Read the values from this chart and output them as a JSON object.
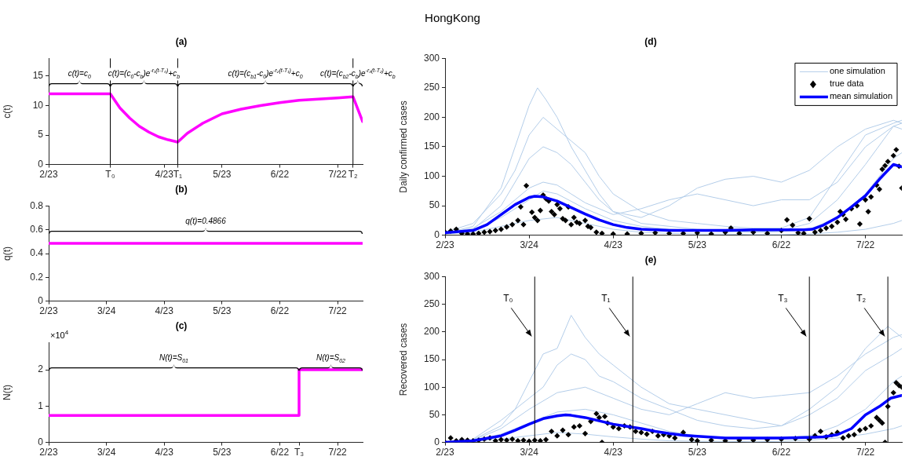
{
  "chart_data": [
    {
      "type": "other",
      "title": "HongKong"
    },
    {
      "type": "line",
      "title": "(a)",
      "ylabel": "c(t)",
      "xlim": [
        "--02-23",
        "--08-04"
      ],
      "ylim": [
        0,
        18
      ],
      "yticks": [
        0,
        5,
        10,
        15
      ],
      "xticks": [
        {
          "value": "--02-23",
          "label": "2/23"
        },
        {
          "value": "--03-26",
          "label": "T₀"
        },
        {
          "value": "--04-23",
          "label": "4/23"
        },
        {
          "value": "--04-30",
          "label": "T₁"
        },
        {
          "value": "--05-23",
          "label": "5/23"
        },
        {
          "value": "--06-22",
          "label": "6/22"
        },
        {
          "value": "--07-22",
          "label": "7/22"
        },
        {
          "value": "--07-30",
          "label": "T₂"
        }
      ],
      "series": [
        {
          "color": "#ff00ff",
          "x": [
            "--02-23",
            "--03-26",
            "--03-31",
            "--04-05",
            "--04-10",
            "--04-15",
            "--04-20",
            "--04-25",
            "--04-30",
            "--05-05",
            "--05-13",
            "--05-23",
            "--06-02",
            "--06-12",
            "--06-22",
            "--07-02",
            "--07-12",
            "--07-22",
            "--07-30",
            "--08-04"
          ],
          "values": [
            12,
            12,
            9.6,
            7.9,
            6.5,
            5.5,
            4.7,
            4.2,
            3.8,
            5.3,
            7.0,
            8.6,
            9.4,
            10.0,
            10.5,
            10.9,
            11.1,
            11.3,
            11.5,
            7.3
          ]
        }
      ],
      "ref_lines": [
        {
          "axis": "x",
          "value": "--03-26",
          "color": "#000000"
        },
        {
          "axis": "x",
          "value": "--04-30",
          "color": "#000000"
        },
        {
          "axis": "x",
          "value": "--07-30",
          "color": "#000000"
        }
      ],
      "annotations": [
        "c(t)=c$_{0}$",
        "c(t)=(c$_{0}$-c$_{b}$)e$^{-r₁(t-T₀)}$+c$_{b}$",
        "c(t)=(c$_{b1}$-c$_{0}$)e$^{-r₂(t-T₁)}$+c$_{0}$",
        "c(t)=(c$_{b2}$-c$_{b}$)e$^{-r₃(t-T₂)}$+c$_{b}$"
      ]
    },
    {
      "type": "line",
      "title": "(b)",
      "ylabel": "q(t)",
      "xlim": [
        "--02-23",
        "--08-04"
      ],
      "ylim": [
        0,
        0.8
      ],
      "yticks": [
        0,
        0.2,
        0.4,
        0.6,
        0.8
      ],
      "xticks": [
        {
          "value": "--02-23",
          "label": "2/23"
        },
        {
          "value": "--03-24",
          "label": "3/24"
        },
        {
          "value": "--04-23",
          "label": "4/23"
        },
        {
          "value": "--05-23",
          "label": "5/23"
        },
        {
          "value": "--06-22",
          "label": "6/22"
        },
        {
          "value": "--07-22",
          "label": "7/22"
        }
      ],
      "series": [
        {
          "color": "#ff00ff",
          "x": [
            "--02-23",
            "--08-04"
          ],
          "values": [
            0.4866,
            0.4866
          ]
        }
      ],
      "annotations": [
        "q(t)=0.4866"
      ]
    },
    {
      "type": "line",
      "title": "(c)",
      "ylabel": "N(t)",
      "xlim": [
        "--02-23",
        "--08-04"
      ],
      "ylim": [
        0,
        2.75
      ],
      "yticks": [
        0,
        1,
        2
      ],
      "xticks": [
        {
          "value": "--02-23",
          "label": "2/23"
        },
        {
          "value": "--03-24",
          "label": "3/24"
        },
        {
          "value": "--04-23",
          "label": "4/23"
        },
        {
          "value": "--05-23",
          "label": "5/23"
        },
        {
          "value": "--06-22",
          "label": "6/22"
        },
        {
          "value": "--07-02",
          "label": "T₃"
        },
        {
          "value": "--07-22",
          "label": "7/22"
        }
      ],
      "series": [
        {
          "color": "#ff00ff",
          "x": [
            "--02-23",
            "--07-02",
            "--07-02",
            "--08-04"
          ],
          "values": [
            0.74,
            0.74,
            2,
            2
          ]
        }
      ],
      "annotations": [
        "N(t)=S$_{01}$",
        "N(t)=S$_{02}$",
        "×10$^{4}$"
      ]
    },
    {
      "type": "line",
      "title": "(d)",
      "ylabel": "Daily confirmed cases",
      "xlim": [
        "--02-23",
        "--08-04"
      ],
      "ylim": [
        0,
        300
      ],
      "yticks": [
        0,
        50,
        100,
        150,
        200,
        250,
        300
      ],
      "legend": "top right",
      "xticks": [
        {
          "value": "--02-23",
          "label": "2/23"
        },
        {
          "value": "--03-24",
          "label": "3/24"
        },
        {
          "value": "--04-23",
          "label": "4/23"
        },
        {
          "value": "--05-23",
          "label": "5/23"
        },
        {
          "value": "--06-22",
          "label": "6/22"
        },
        {
          "value": "--07-22",
          "label": "7/22"
        }
      ],
      "series": [
        {
          "name": "one simulation",
          "color": "#b3cde9",
          "x": [
            "--02-23",
            "--03-04",
            "--03-14",
            "--03-19",
            "--03-24",
            "--03-27",
            "--03-30",
            "--04-03",
            "--04-08",
            "--04-13",
            "--04-18",
            "--04-23",
            "--05-03",
            "--05-13",
            "--05-23",
            "--06-02",
            "--06-12",
            "--06-22",
            "--07-02",
            "--07-12",
            "--07-22",
            "--08-01",
            "--08-04"
          ],
          "values": [
            3,
            15,
            80,
            150,
            220,
            250,
            230,
            200,
            150,
            110,
            70,
            40,
            20,
            15,
            10,
            8,
            6,
            8,
            20,
            60,
            120,
            185,
            190
          ]
        },
        {
          "color": "#b3cde9",
          "x": [
            "--02-23",
            "--03-04",
            "--03-14",
            "--03-19",
            "--03-24",
            "--03-29",
            "--04-03",
            "--04-08",
            "--04-13",
            "--04-18",
            "--04-23",
            "--05-03",
            "--05-13",
            "--05-23",
            "--06-02",
            "--06-12",
            "--06-22",
            "--07-02",
            "--07-12",
            "--07-22",
            "--08-01",
            "--08-04"
          ],
          "values": [
            2,
            10,
            50,
            90,
            130,
            150,
            140,
            120,
            90,
            60,
            40,
            30,
            50,
            80,
            95,
            100,
            90,
            110,
            150,
            180,
            195,
            190
          ]
        },
        {
          "color": "#b3cde9",
          "x": [
            "--02-23",
            "--03-04",
            "--03-14",
            "--03-24",
            "--03-29",
            "--04-03",
            "--04-13",
            "--04-23",
            "--05-03",
            "--05-13",
            "--05-23",
            "--06-02",
            "--06-12",
            "--06-22",
            "--07-02",
            "--07-12",
            "--07-22",
            "--08-01",
            "--08-04"
          ],
          "values": [
            4,
            8,
            30,
            60,
            75,
            70,
            45,
            25,
            15,
            10,
            8,
            6,
            5,
            6,
            10,
            30,
            70,
            130,
            140
          ]
        },
        {
          "color": "#b3cde9",
          "x": [
            "--02-23",
            "--03-04",
            "--03-14",
            "--03-19",
            "--03-24",
            "--03-29",
            "--04-03",
            "--04-08",
            "--04-13",
            "--04-23",
            "--05-03",
            "--05-13",
            "--05-23",
            "--06-02",
            "--06-12",
            "--06-22",
            "--07-02",
            "--07-12",
            "--07-22",
            "--08-01",
            "--08-04"
          ],
          "values": [
            3,
            12,
            40,
            60,
            80,
            90,
            85,
            70,
            55,
            35,
            45,
            60,
            70,
            60,
            50,
            60,
            60,
            90,
            150,
            185,
            180
          ]
        },
        {
          "color": "#b3cde9",
          "x": [
            "--02-23",
            "--03-04",
            "--03-14",
            "--03-24",
            "--04-03",
            "--04-13",
            "--04-23",
            "--05-03",
            "--05-13",
            "--05-23",
            "--06-02",
            "--06-12",
            "--06-22",
            "--07-02",
            "--07-12",
            "--07-22",
            "--08-01",
            "--08-04"
          ],
          "values": [
            2,
            5,
            15,
            25,
            30,
            20,
            10,
            5,
            3,
            2,
            2,
            1,
            1,
            2,
            5,
            10,
            20,
            25
          ]
        },
        {
          "color": "#b3cde9",
          "x": [
            "--02-23",
            "--03-04",
            "--03-14",
            "--03-19",
            "--03-24",
            "--03-29",
            "--04-03",
            "--04-08",
            "--04-13",
            "--04-18",
            "--04-23",
            "--05-03",
            "--05-13",
            "--05-23",
            "--06-02",
            "--06-12",
            "--06-22",
            "--07-02",
            "--07-12",
            "--07-22",
            "--08-01",
            "--08-04"
          ],
          "values": [
            5,
            20,
            70,
            110,
            170,
            200,
            180,
            160,
            140,
            100,
            70,
            40,
            25,
            20,
            15,
            12,
            12,
            30,
            100,
            170,
            190,
            195
          ]
        },
        {
          "name": "true data",
          "type": "scatter",
          "marker": "diamond",
          "color": "#000000",
          "x": [
            "--02-23",
            "--02-25",
            "--02-27",
            "--02-29",
            "--03-02",
            "--03-04",
            "--03-06",
            "--03-08",
            "--03-10",
            "--03-12",
            "--03-14",
            "--03-16",
            "--03-18",
            "--03-20",
            "--03-21",
            "--03-22",
            "--03-23",
            "--03-25",
            "--03-26",
            "--03-27",
            "--03-28",
            "--03-29",
            "--03-30",
            "--03-31",
            "--04-01",
            "--04-02",
            "--04-03",
            "--04-04",
            "--04-05",
            "--04-06",
            "--04-07",
            "--04-08",
            "--04-09",
            "--04-10",
            "--04-11",
            "--04-13",
            "--04-14",
            "--04-15",
            "--04-17",
            "--04-19",
            "--04-23",
            "--04-28",
            "--05-03",
            "--05-08",
            "--05-13",
            "--05-18",
            "--05-23",
            "--05-28",
            "--06-02",
            "--06-04",
            "--06-07",
            "--06-12",
            "--06-17",
            "--06-22",
            "--06-24",
            "--06-26",
            "--06-28",
            "--06-30",
            "--07-02",
            "--07-04",
            "--07-06",
            "--07-08",
            "--07-10",
            "--07-12",
            "--07-13",
            "--07-14",
            "--07-15",
            "--07-17",
            "--07-19",
            "--07-20",
            "--07-22",
            "--07-23",
            "--07-24",
            "--07-26",
            "--07-27",
            "--07-28",
            "--07-29",
            "--07-30",
            "--08-01",
            "--08-02",
            "--08-03",
            "--08-04"
          ],
          "values": [
            5,
            7,
            10,
            3,
            2,
            2,
            3,
            5,
            6,
            8,
            10,
            14,
            18,
            25,
            48,
            18,
            84,
            39,
            30,
            25,
            42,
            68,
            62,
            58,
            40,
            35,
            52,
            45,
            28,
            25,
            48,
            18,
            30,
            22,
            20,
            25,
            15,
            13,
            5,
            3,
            2,
            2,
            3,
            4,
            3,
            3,
            4,
            2,
            5,
            12,
            3,
            5,
            3,
            8,
            26,
            17,
            4,
            3,
            28,
            5,
            8,
            12,
            15,
            22,
            40,
            35,
            27,
            45,
            50,
            19,
            60,
            40,
            65,
            85,
            78,
            112,
            118,
            125,
            135,
            145,
            117,
            80
          ]
        },
        {
          "name": "mean simulation",
          "color": "#0000ff",
          "x": [
            "--02-23",
            "--03-04",
            "--03-09",
            "--03-14",
            "--03-19",
            "--03-24",
            "--03-26",
            "--03-29",
            "--04-03",
            "--04-08",
            "--04-13",
            "--04-18",
            "--04-23",
            "--04-28",
            "--05-03",
            "--05-13",
            "--05-23",
            "--06-02",
            "--06-12",
            "--06-22",
            "--06-30",
            "--07-03",
            "--07-07",
            "--07-12",
            "--07-17",
            "--07-22",
            "--07-27",
            "--08-01",
            "--08-04"
          ],
          "values": [
            4,
            8,
            18,
            35,
            52,
            64,
            66,
            65,
            58,
            47,
            36,
            26,
            18,
            13,
            10,
            8,
            8,
            8,
            9,
            9,
            9,
            10,
            17,
            30,
            48,
            67,
            95,
            120,
            116
          ]
        }
      ]
    },
    {
      "type": "line",
      "title": "(e)",
      "ylabel": "Recovered cases",
      "xlim": [
        "--02-23",
        "--08-04"
      ],
      "ylim": [
        0,
        300
      ],
      "yticks": [
        0,
        50,
        100,
        150,
        200,
        250,
        300
      ],
      "xticks": [
        {
          "value": "--02-23",
          "label": "2/23"
        },
        {
          "value": "--03-24",
          "label": "3/24"
        },
        {
          "value": "--04-23",
          "label": "4/23"
        },
        {
          "value": "--05-23",
          "label": "5/23"
        },
        {
          "value": "--06-22",
          "label": "6/22"
        },
        {
          "value": "--07-22",
          "label": "7/22"
        }
      ],
      "series": [
        {
          "color": "#b3cde9",
          "x": [
            "--03-04",
            "--03-14",
            "--03-19",
            "--03-24",
            "--03-29",
            "--04-03",
            "--04-08",
            "--04-13",
            "--04-18",
            "--04-23",
            "--04-28",
            "--05-03",
            "--05-13",
            "--05-23",
            "--06-02",
            "--06-12",
            "--06-22",
            "--07-02",
            "--07-12",
            "--07-22",
            "--07-30",
            "--08-04"
          ],
          "values": [
            5,
            30,
            60,
            110,
            160,
            170,
            230,
            190,
            160,
            140,
            120,
            100,
            70,
            60,
            50,
            40,
            30,
            60,
            100,
            170,
            210,
            190
          ]
        },
        {
          "color": "#b3cde9",
          "x": [
            "--03-04",
            "--03-14",
            "--03-24",
            "--04-03",
            "--04-13",
            "--04-23",
            "--05-03",
            "--05-13",
            "--05-23",
            "--06-02",
            "--06-12",
            "--06-22",
            "--07-02",
            "--07-12",
            "--07-22",
            "--08-01",
            "--08-04"
          ],
          "values": [
            4,
            25,
            60,
            90,
            100,
            80,
            60,
            50,
            70,
            90,
            80,
            85,
            90,
            120,
            160,
            190,
            195
          ]
        },
        {
          "color": "#b3cde9",
          "x": [
            "--03-04",
            "--03-14",
            "--03-24",
            "--04-03",
            "--04-13",
            "--04-23",
            "--05-03",
            "--05-13",
            "--05-23",
            "--06-02",
            "--06-12",
            "--06-22",
            "--07-02",
            "--07-12",
            "--07-22",
            "--08-01",
            "--08-04"
          ],
          "values": [
            3,
            15,
            35,
            55,
            60,
            50,
            35,
            20,
            12,
            null,
            8,
            8,
            12,
            30,
            60,
            110,
            120
          ]
        },
        {
          "color": "#b3cde9",
          "x": [
            "--03-04",
            "--03-14",
            "--03-24",
            "--04-03",
            "--04-13",
            "--04-23",
            "--05-03",
            "--05-13",
            "--05-23",
            "--06-02",
            "--06-12",
            "--06-22",
            "--07-02",
            "--07-12",
            "--07-22",
            "--08-01",
            "--08-04"
          ],
          "values": [
            2,
            6,
            12,
            18,
            15,
            10,
            6,
            3,
            2,
            2,
            1,
            2,
            4,
            8,
            15,
            25,
            30
          ]
        },
        {
          "color": "#b3cde9",
          "x": [
            "--03-04",
            "--03-14",
            "--03-24",
            "--03-29",
            "--04-03",
            "--04-08",
            "--04-13",
            "--04-18",
            "--04-23",
            "--05-03",
            "--05-13",
            "--05-23",
            "--06-02",
            "--06-12",
            "--06-22",
            "--07-02",
            "--07-12",
            "--07-22",
            "--08-01",
            "--08-04"
          ],
          "values": [
            6,
            40,
            80,
            100,
            140,
            160,
            150,
            120,
            110,
            80,
            60,
            40,
            30,
            25,
            30,
            50,
            80,
            130,
            160,
            170
          ]
        },
        {
          "type": "scatter",
          "marker": "diamond",
          "color": "#000000",
          "x": [
            "--02-23",
            "--02-25",
            "--02-27",
            "--02-29",
            "--03-02",
            "--03-04",
            "--03-06",
            "--03-08",
            "--03-10",
            "--03-12",
            "--03-14",
            "--03-16",
            "--03-18",
            "--03-20",
            "--03-22",
            "--03-24",
            "--03-26",
            "--03-28",
            "--03-30",
            "--04-01",
            "--04-03",
            "--04-05",
            "--04-07",
            "--04-09",
            "--04-11",
            "--04-13",
            "--04-15",
            "--04-17",
            "--04-18",
            "--04-19",
            "--04-20",
            "--04-21",
            "--04-23",
            "--04-25",
            "--04-27",
            "--04-29",
            "--05-01",
            "--05-03",
            "--05-05",
            "--05-07",
            "--05-09",
            "--05-11",
            "--05-13",
            "--05-15",
            "--05-18",
            "--05-21",
            "--05-23",
            "--05-28",
            "--06-02",
            "--06-07",
            "--06-12",
            "--06-17",
            "--06-22",
            "--06-27",
            "--07-02",
            "--07-04",
            "--07-06",
            "--07-08",
            "--07-10",
            "--07-12",
            "--07-14",
            "--07-16",
            "--07-18",
            "--07-20",
            "--07-22",
            "--07-24",
            "--07-26",
            "--07-27",
            "--07-28",
            "--07-29",
            "--07-30",
            "--08-01",
            "--08-02",
            "--08-03",
            "--08-04"
          ],
          "values": [
            0,
            8,
            3,
            5,
            4,
            3,
            4,
            6,
            8,
            3,
            5,
            4,
            6,
            3,
            4,
            2,
            4,
            3,
            5,
            20,
            12,
            22,
            14,
            28,
            30,
            16,
            38,
            52,
            45,
            0,
            47,
            35,
            28,
            25,
            30,
            28,
            20,
            18,
            15,
            20,
            12,
            14,
            12,
            8,
            18,
            5,
            3,
            4,
            3,
            4,
            4,
            5,
            6,
            7,
            6,
            12,
            20,
            10,
            14,
            18,
            8,
            12,
            14,
            22,
            25,
            30,
            45,
            40,
            35,
            0,
            65,
            90,
            108,
            103,
            100
          ]
        },
        {
          "color": "#0000ff",
          "x": [
            "--02-23",
            "--03-04",
            "--03-14",
            "--03-19",
            "--03-24",
            "--03-29",
            "--04-03",
            "--04-06",
            "--04-08",
            "--04-13",
            "--04-18",
            "--04-23",
            "--04-28",
            "--05-03",
            "--05-08",
            "--05-13",
            "--05-18",
            "--05-23",
            "--06-02",
            "--06-12",
            "--06-22",
            "--07-02",
            "--07-07",
            "--07-12",
            "--07-17",
            "--07-22",
            "--07-27",
            "--07-31",
            "--08-04"
          ],
          "values": [
            0,
            3,
            12,
            22,
            33,
            43,
            48,
            50,
            49,
            45,
            39,
            33,
            29,
            25,
            20,
            16,
            13,
            11,
            8,
            8,
            8,
            9,
            10,
            14,
            25,
            50,
            65,
            80,
            85
          ]
        }
      ],
      "ref_lines": [
        {
          "axis": "x",
          "value": "--03-26",
          "label": "T₀",
          "color": "#000000"
        },
        {
          "axis": "x",
          "value": "--04-30",
          "label": "T₁",
          "color": "#000000"
        },
        {
          "axis": "x",
          "value": "--07-02",
          "label": "T₃",
          "color": "#000000"
        },
        {
          "axis": "x",
          "value": "--07-30",
          "label": "T₂",
          "color": "#000000"
        }
      ]
    }
  ]
}
